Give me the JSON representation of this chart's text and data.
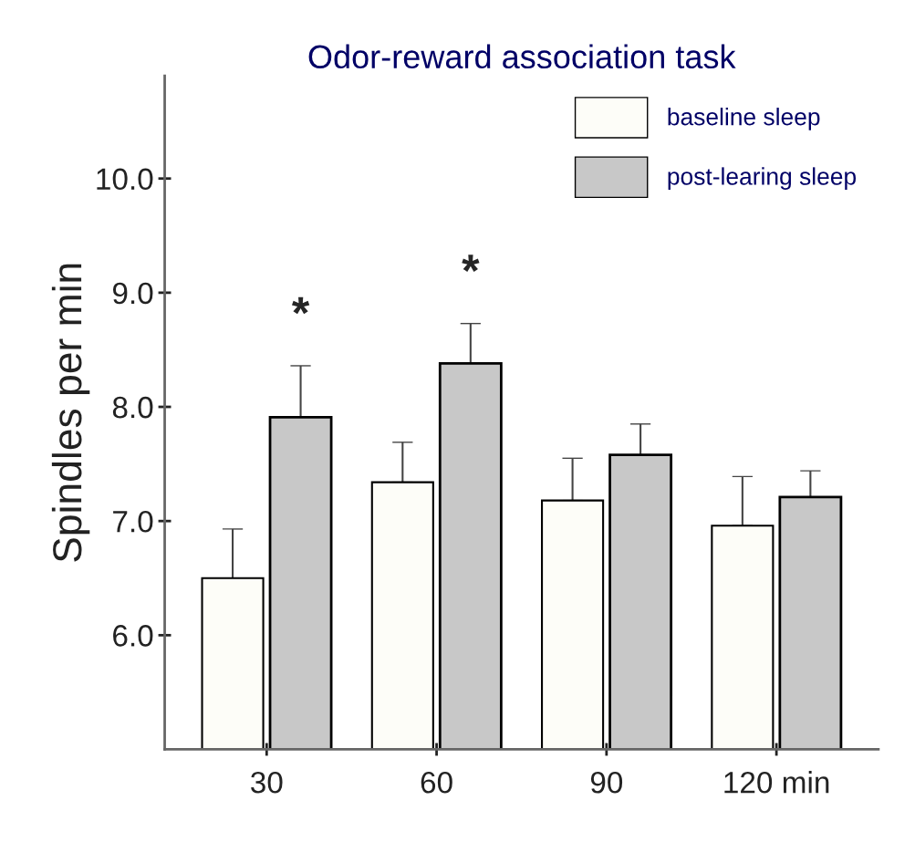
{
  "chart_data": {
    "type": "bar",
    "title": "Odor-reward association task",
    "ylabel": "Spindles per min",
    "categories": [
      "30",
      "60",
      "90",
      "120 min"
    ],
    "series": [
      {
        "name": "baseline sleep",
        "color": "#fdfdf8",
        "values": [
          6.5,
          7.34,
          7.18,
          6.96
        ],
        "errors": [
          [
            6.5,
            6.93
          ],
          [
            7.34,
            7.69
          ],
          [
            7.18,
            7.55
          ],
          [
            6.96,
            7.39
          ]
        ]
      },
      {
        "name": "post-learing sleep",
        "color": "#c8c8c8",
        "values": [
          7.91,
          8.38,
          7.58,
          7.21
        ],
        "errors": [
          [
            7.91,
            8.36
          ],
          [
            8.38,
            8.73
          ],
          [
            7.58,
            7.85
          ],
          [
            7.21,
            7.44
          ]
        ]
      }
    ],
    "ylim": [
      5,
      10.9
    ],
    "yticks": [
      {
        "value": 6,
        "label": "6.0"
      },
      {
        "value": 7,
        "label": "7.0"
      },
      {
        "value": 8,
        "label": "8.0"
      },
      {
        "value": 9,
        "label": "9.0"
      },
      {
        "value": 10,
        "label": "10.0"
      }
    ],
    "annotations": [
      "*",
      "*"
    ],
    "grid": false,
    "legend": "top right"
  }
}
